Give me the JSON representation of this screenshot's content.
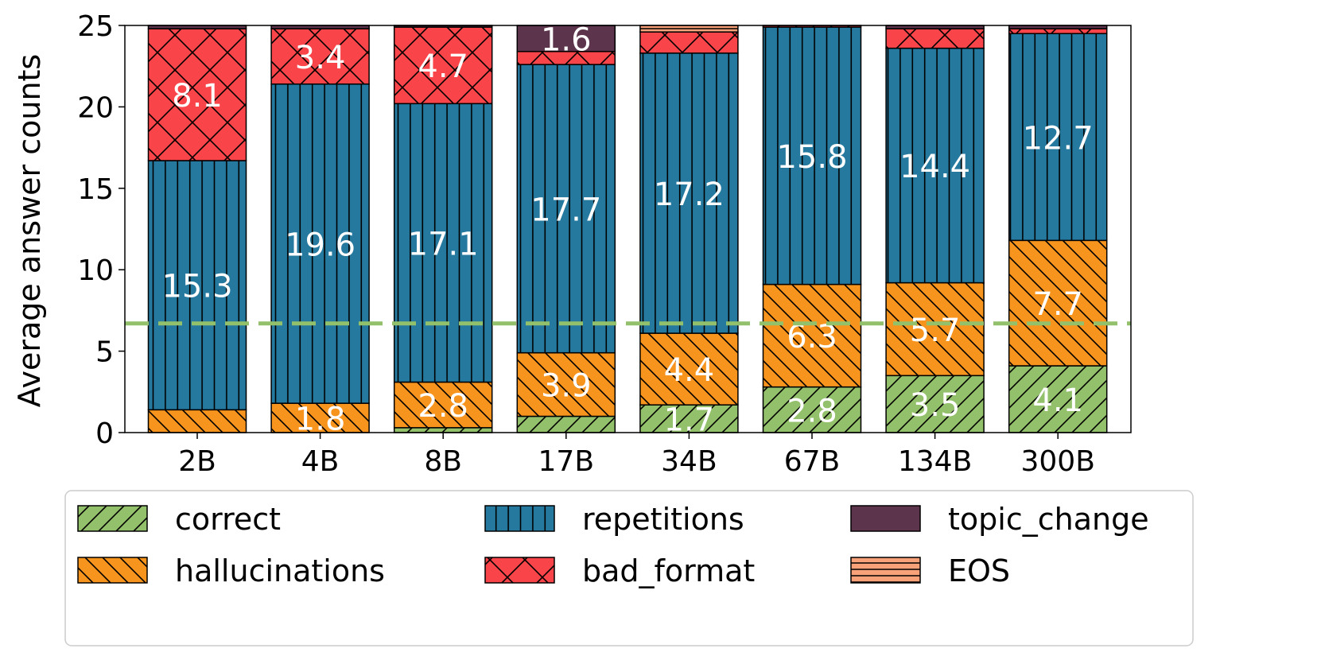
{
  "chart_data": {
    "type": "bar",
    "stacked": true,
    "title": "",
    "xlabel": "",
    "ylabel": "Average answer counts",
    "ylim": [
      0,
      25
    ],
    "yticks": [
      0,
      5,
      10,
      15,
      20,
      25
    ],
    "categories": [
      "2B",
      "4B",
      "8B",
      "17B",
      "34B",
      "67B",
      "134B",
      "300B"
    ],
    "series": [
      {
        "name": "correct",
        "color": "#93c06b",
        "hatch": "diag-fwd",
        "values": [
          0,
          0,
          0.3,
          1.0,
          1.7,
          2.8,
          3.5,
          4.1
        ]
      },
      {
        "name": "hallucinations",
        "color": "#f7941d",
        "hatch": "diag-back",
        "values": [
          1.4,
          1.8,
          2.8,
          3.9,
          4.4,
          6.3,
          5.7,
          7.7
        ]
      },
      {
        "name": "repetitions",
        "color": "#26799e",
        "hatch": "vertical",
        "values": [
          15.3,
          19.6,
          17.1,
          17.7,
          17.2,
          15.8,
          14.4,
          12.7
        ]
      },
      {
        "name": "bad_format",
        "color": "#f94449",
        "hatch": "cross",
        "values": [
          8.1,
          3.4,
          4.7,
          0.8,
          1.3,
          0.1,
          1.2,
          0.3
        ]
      },
      {
        "name": "topic_change",
        "color": "#5c344c",
        "hatch": "none",
        "values": [
          0.2,
          0.2,
          0.1,
          1.6,
          0,
          0,
          0.2,
          0.2
        ]
      },
      {
        "name": "EOS",
        "color": "#f9a27a",
        "hatch": "horizontal",
        "values": [
          0,
          0,
          0,
          0,
          0.4,
          0,
          0,
          0
        ]
      }
    ],
    "label_min": 1.5,
    "reference_line": {
      "y": 6.7,
      "color": "#93c06b",
      "style": "dashed"
    },
    "legend": {
      "placement": "bottom",
      "columns": 3
    }
  }
}
